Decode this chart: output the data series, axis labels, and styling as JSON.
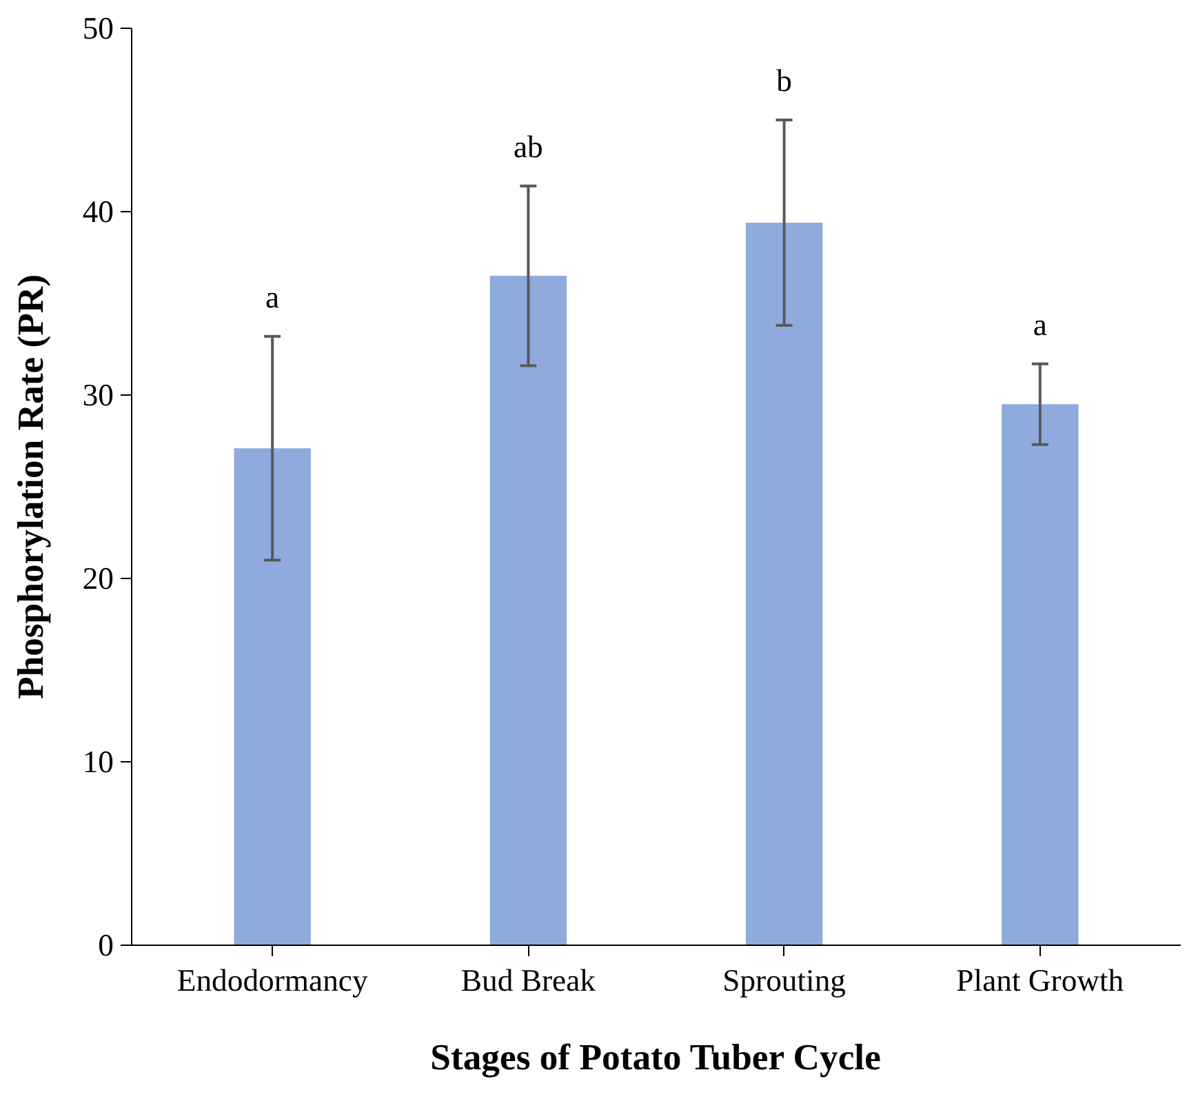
{
  "chart_data": {
    "type": "bar",
    "xlabel": "Stages of Potato Tuber Cycle",
    "ylabel": "Phosphorylation Rate (PR)",
    "categories": [
      "Endodormancy",
      "Bud Break",
      "Sprouting",
      "Plant Growth"
    ],
    "values": [
      27.1,
      36.5,
      39.4,
      29.5
    ],
    "errors": [
      6.1,
      4.9,
      5.6,
      2.2
    ],
    "color": "#8faadc",
    "ylim": [
      0,
      50
    ],
    "yticks": [
      0,
      10,
      20,
      30,
      40,
      50
    ],
    "grid": false,
    "annotations": [
      "a",
      "ab",
      "b",
      "a"
    ]
  }
}
